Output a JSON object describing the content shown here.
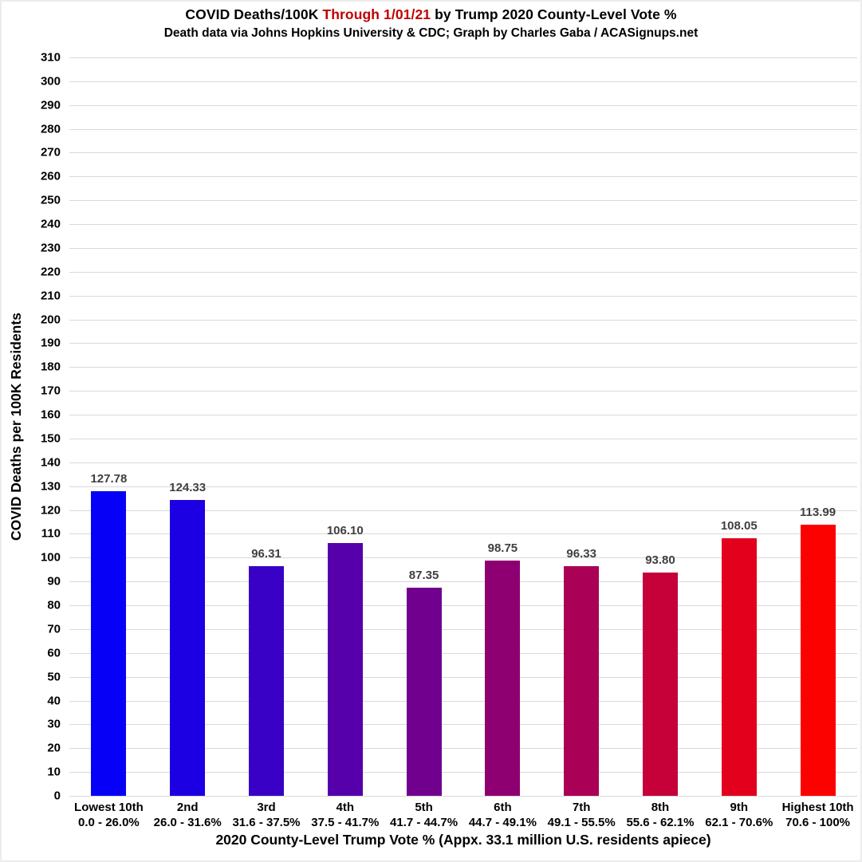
{
  "header": {
    "title_part1": "COVID Deaths/100K ",
    "title_highlight": "Through 1/01/21",
    "title_part2": " by Trump 2020 County-Level Vote %",
    "subtitle": "Death data via Johns Hopkins University & CDC; Graph by Charles Gaba / ACASignups.net",
    "highlight_color": "#c00000"
  },
  "chart_data": {
    "type": "bar",
    "title": "COVID Deaths/100K Through 1/01/21 by Trump 2020 County-Level Vote %",
    "subtitle": "Death data via Johns Hopkins University & CDC; Graph by Charles Gaba / ACASignups.net",
    "xlabel": "2020 County-Level Trump Vote % (Appx. 33.1 million U.S. residents apiece)",
    "ylabel": "COVID Deaths per 100K Residents",
    "ylim": [
      0,
      310
    ],
    "ytick_step": 10,
    "grid": true,
    "legend": "none",
    "categories": [
      {
        "tier": "Lowest 10th",
        "range": "0.0 - 26.0%"
      },
      {
        "tier": "2nd",
        "range": "26.0 - 31.6%"
      },
      {
        "tier": "3rd",
        "range": "31.6 - 37.5%"
      },
      {
        "tier": "4th",
        "range": "37.5 - 41.7%"
      },
      {
        "tier": "5th",
        "range": "41.7 - 44.7%"
      },
      {
        "tier": "6th",
        "range": "44.7 - 49.1%"
      },
      {
        "tier": "7th",
        "range": "49.1 - 55.5%"
      },
      {
        "tier": "8th",
        "range": "55.6 - 62.1%"
      },
      {
        "tier": "9th",
        "range": "62.1 - 70.6%"
      },
      {
        "tier": "Highest 10th",
        "range": "70.6 - 100%"
      }
    ],
    "values": [
      127.78,
      124.33,
      96.31,
      106.1,
      87.35,
      98.75,
      96.33,
      93.8,
      108.05,
      113.99
    ],
    "value_labels": [
      "127.78",
      "124.33",
      "96.31",
      "106.10",
      "87.35",
      "98.75",
      "96.33",
      "93.80",
      "108.05",
      "113.99"
    ],
    "bar_colors": [
      "#0600f7",
      "#1c00e3",
      "#3900c6",
      "#5500aa",
      "#71008e",
      "#8e0071",
      "#aa0055",
      "#c60039",
      "#e3001c",
      "#fb0200"
    ],
    "gridline_color": "#d9d9d9",
    "value_label_color": "#404040"
  }
}
